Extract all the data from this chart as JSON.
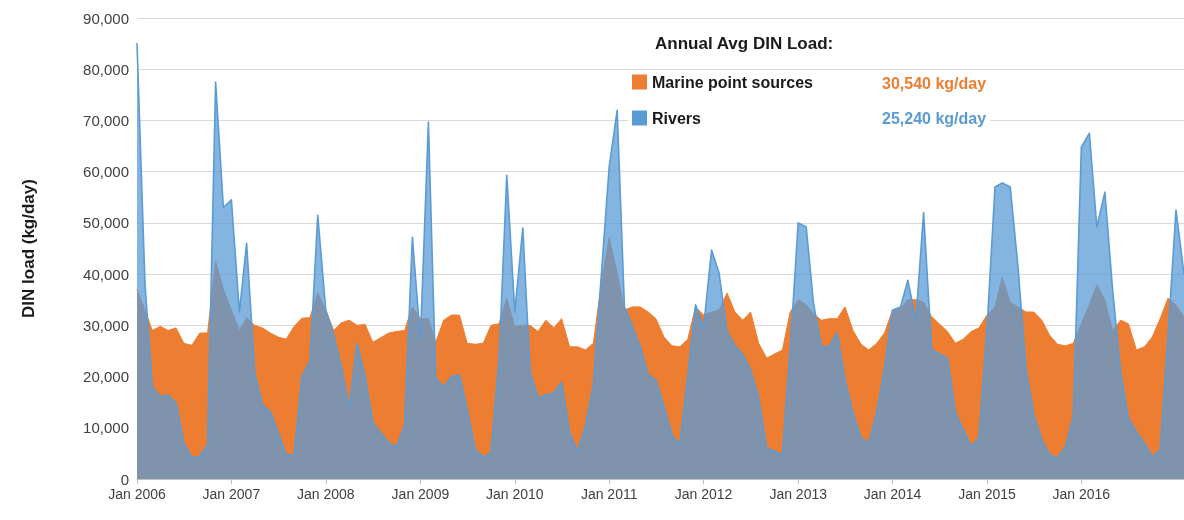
{
  "chart_data": {
    "type": "area",
    "ylabel": "DIN load (kg/day)",
    "legend_title": "Annual Avg DIN Load:",
    "annotations": [
      "30,540 kg/day",
      "25,240 kg/day"
    ],
    "x": [
      "2006-01",
      "2006-02",
      "2006-03",
      "2006-04",
      "2006-05",
      "2006-06",
      "2006-07",
      "2006-08",
      "2006-09",
      "2006-10",
      "2006-11",
      "2006-12",
      "2007-01",
      "2007-02",
      "2007-03",
      "2007-04",
      "2007-05",
      "2007-06",
      "2007-07",
      "2007-08",
      "2007-09",
      "2007-10",
      "2007-11",
      "2007-12",
      "2008-01",
      "2008-02",
      "2008-03",
      "2008-04",
      "2008-05",
      "2008-06",
      "2008-07",
      "2008-09",
      "2008-10",
      "2008-11",
      "2008-12",
      "2009-01",
      "2009-02",
      "2009-03",
      "2009-04",
      "2009-05",
      "2009-06",
      "2009-07",
      "2009-08",
      "2009-09",
      "2009-10",
      "2009-11",
      "2009-12",
      "2010-01",
      "2010-02",
      "2010-03",
      "2010-04",
      "2010-05",
      "2010-06",
      "2010-07",
      "2010-08",
      "2010-09",
      "2010-10",
      "2010-11",
      "2010-12",
      "2011-01",
      "2011-02",
      "2011-03",
      "2011-04",
      "2011-05",
      "2011-06",
      "2011-07",
      "2011-08",
      "2011-09",
      "2011-10",
      "2011-11",
      "2011-12",
      "2012-01",
      "2012-02",
      "2012-03",
      "2012-04",
      "2012-05",
      "2012-06",
      "2012-07",
      "2012-08",
      "2012-09",
      "2012-11",
      "2012-12",
      "2013-01",
      "2013-02",
      "2013-03",
      "2013-04",
      "2013-05",
      "2013-06",
      "2013-07",
      "2013-08",
      "2013-09",
      "2013-10",
      "2013-11",
      "2013-12",
      "2014-01",
      "2014-02",
      "2014-03",
      "2014-04",
      "2014-05",
      "2014-06",
      "2014-08",
      "2014-09",
      "2014-10",
      "2014-11",
      "2014-12",
      "2015-01",
      "2015-02",
      "2015-03",
      "2015-04",
      "2015-05",
      "2015-06",
      "2015-07",
      "2015-08",
      "2015-09",
      "2015-10",
      "2015-11",
      "2015-12",
      "2016-01",
      "2016-02",
      "2016-03",
      "2016-04",
      "2016-05",
      "2016-06",
      "2016-07",
      "2016-08",
      "2016-09",
      "2016-10",
      "2016-11",
      "2016-12",
      "2017-01",
      "2017-02"
    ],
    "series": [
      {
        "name": "Marine point sources",
        "color": "#ed7d31",
        "values": [
          37000,
          33000,
          29000,
          29800,
          29000,
          29500,
          26500,
          26100,
          28500,
          28500,
          42500,
          37000,
          33000,
          29000,
          31500,
          30000,
          29500,
          28500,
          27700,
          27300,
          29800,
          31400,
          31500,
          36300,
          33000,
          29000,
          30500,
          31000,
          30000,
          30200,
          26700,
          28500,
          28800,
          29000,
          33600,
          31300,
          31300,
          26700,
          31000,
          32000,
          32000,
          26500,
          26300,
          26500,
          30000,
          30300,
          35300,
          29800,
          30000,
          30000,
          28800,
          31000,
          29500,
          31300,
          25800,
          25800,
          25200,
          26500,
          38000,
          47200,
          40200,
          33000,
          33600,
          33600,
          32600,
          31300,
          27700,
          26000,
          25800,
          27300,
          33600,
          32000,
          32600,
          33000,
          36300,
          32600,
          31000,
          32600,
          26500,
          23600,
          25200,
          32600,
          35000,
          34000,
          32300,
          31000,
          31300,
          31300,
          33600,
          29000,
          26300,
          25200,
          26500,
          28500,
          33000,
          33200,
          35000,
          35000,
          34500,
          31700,
          28800,
          26500,
          27300,
          28800,
          29500,
          32000,
          33600,
          39400,
          34500,
          33600,
          32600,
          32600,
          31000,
          28000,
          26300,
          26000,
          26500,
          30300,
          34000,
          37900,
          35000,
          29000,
          31000,
          30300,
          25200,
          25800,
          27700,
          31300,
          35300,
          34000,
          31700
        ]
      },
      {
        "name": "Rivers",
        "color": "#5b9bd5",
        "values": [
          85000,
          38000,
          18000,
          16000,
          16400,
          14800,
          7000,
          4100,
          4500,
          6600,
          77500,
          53000,
          54500,
          32600,
          46000,
          20700,
          14400,
          13100,
          9000,
          4700,
          4700,
          20000,
          23000,
          51500,
          33000,
          28000,
          21900,
          14000,
          26500,
          20000,
          11000,
          7000,
          6300,
          10500,
          47200,
          27100,
          69700,
          19700,
          17800,
          20000,
          20300,
          13500,
          5700,
          4300,
          5000,
          23200,
          59300,
          32600,
          49000,
          20900,
          15800,
          16400,
          16800,
          18900,
          9000,
          5300,
          10200,
          18300,
          39400,
          60900,
          72000,
          33600,
          29700,
          25800,
          20300,
          19300,
          14000,
          8600,
          6600,
          20000,
          34000,
          29500,
          44700,
          40200,
          28700,
          26100,
          24200,
          21300,
          15800,
          6100,
          4700,
          25200,
          50000,
          49200,
          34400,
          25600,
          26000,
          28500,
          19300,
          12900,
          8000,
          7000,
          13100,
          21700,
          33000,
          33600,
          38800,
          31000,
          52000,
          25200,
          23600,
          12900,
          9600,
          6300,
          8000,
          29100,
          57000,
          57800,
          57000,
          41400,
          21300,
          12500,
          7600,
          4700,
          4100,
          6300,
          12100,
          64800,
          67500,
          49200,
          56000,
          36900,
          20700,
          11900,
          9200,
          7000,
          4300,
          5700,
          27700,
          52500,
          40000
        ]
      }
    ],
    "xlim": [
      "2006-01",
      "2017-02"
    ],
    "xticks": [
      {
        "value": "2006-01",
        "label": "Jan 2006"
      },
      {
        "value": "2007-01",
        "label": "Jan 2007"
      },
      {
        "value": "2008-01",
        "label": "Jan 2008"
      },
      {
        "value": "2009-01",
        "label": "Jan 2009"
      },
      {
        "value": "2010-01",
        "label": "Jan 2010"
      },
      {
        "value": "2011-01",
        "label": "Jan 2011"
      },
      {
        "value": "2012-01",
        "label": "Jan 2012"
      },
      {
        "value": "2013-01",
        "label": "Jan 2013"
      },
      {
        "value": "2014-01",
        "label": "Jan 2014"
      },
      {
        "value": "2015-01",
        "label": "Jan 2015"
      },
      {
        "value": "2016-01",
        "label": "Jan 2016"
      }
    ],
    "ylim": [
      0,
      90000
    ],
    "yticks": [
      0,
      {
        "value": 10000,
        "label": "10,000"
      },
      {
        "value": 20000,
        "label": "20,000"
      },
      {
        "value": 30000,
        "label": "30,000"
      },
      {
        "value": 40000,
        "label": "40,000"
      },
      {
        "value": 50000,
        "label": "50,000"
      },
      {
        "value": 60000,
        "label": "60,000"
      },
      {
        "value": 70000,
        "label": "70,000"
      },
      {
        "value": 80000,
        "label": "80,000"
      },
      {
        "value": 90000,
        "label": "90,000"
      }
    ],
    "grid": "y",
    "legend": "top right"
  }
}
